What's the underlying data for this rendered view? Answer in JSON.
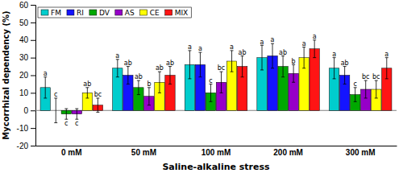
{
  "chart_data": {
    "type": "bar",
    "xlabel": "Saline-alkaline stress",
    "ylabel": "Mycorrhizal dependency (%)",
    "categories": [
      "0 mM",
      "50 mM",
      "100 mM",
      "200 mM",
      "300 mM"
    ],
    "series": [
      {
        "name": "FM",
        "color": "#00CDCD",
        "values": [
          13,
          24,
          26,
          30,
          24
        ],
        "errors": [
          6,
          5,
          8,
          7,
          6
        ],
        "letters": [
          "a",
          "a",
          "a",
          "a",
          "a"
        ]
      },
      {
        "name": "RI",
        "color": "#1414FF",
        "values": [
          0,
          20,
          26,
          31,
          20
        ],
        "errors": [
          7,
          5,
          7,
          7,
          5
        ],
        "letters": [
          "c",
          "ab",
          "a",
          "a",
          "ab"
        ]
      },
      {
        "name": "DV",
        "color": "#00A800",
        "values": [
          -2,
          13,
          10,
          25,
          9
        ],
        "errors": [
          3,
          4,
          5,
          6,
          4
        ],
        "letters": [
          "c",
          "ab",
          "c",
          "ab",
          "c"
        ]
      },
      {
        "name": "AS",
        "color": "#9600C8",
        "values": [
          -2,
          8,
          16,
          21,
          12
        ],
        "errors": [
          3,
          5,
          6,
          5,
          5
        ],
        "letters": [
          "c",
          "b",
          "bc",
          "b",
          "bc"
        ]
      },
      {
        "name": "CE",
        "color": "#FFFF00",
        "values": [
          10,
          16,
          28,
          30,
          12
        ],
        "errors": [
          3,
          6,
          6,
          6,
          5
        ],
        "letters": [
          "ab",
          "ab",
          "a",
          "a",
          "bc"
        ]
      },
      {
        "name": "MIX",
        "color": "#FF1414",
        "values": [
          3,
          20,
          25,
          35,
          24
        ],
        "errors": [
          4,
          5,
          6,
          5,
          6
        ],
        "letters": [
          "bc",
          "ab",
          "ab",
          "a",
          "a"
        ]
      }
    ],
    "hlines": [
      0
    ],
    "ylim": [
      -20,
      60
    ],
    "yticks": [
      -20,
      -10,
      0,
      10,
      20,
      30,
      40,
      50,
      60
    ],
    "grid": false,
    "legend": "upper left"
  }
}
